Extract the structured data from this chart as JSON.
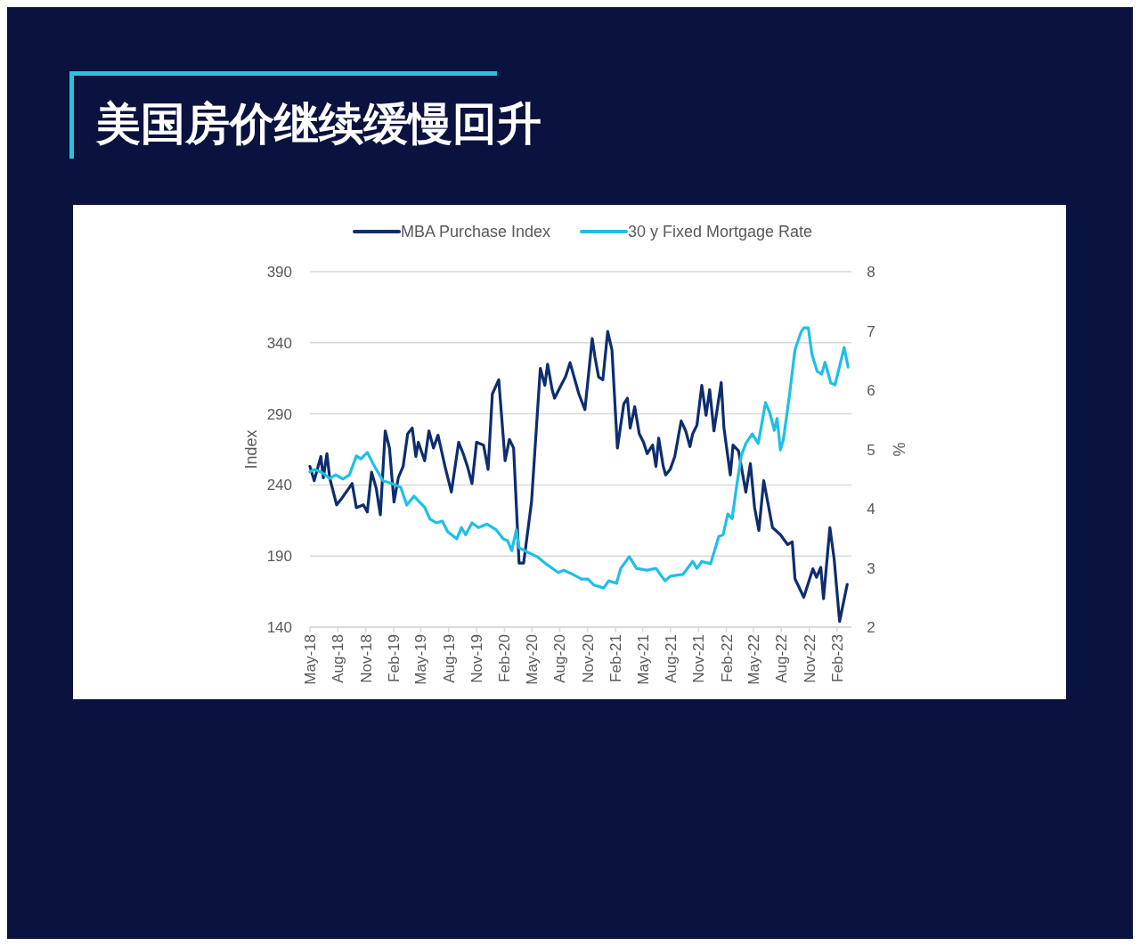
{
  "chart_data": {
    "type": "line",
    "title": "美国房价继续缓慢回升",
    "ylabel": "Index",
    "y2label": "%",
    "legend": "top",
    "grid": "y",
    "marker": "none",
    "line_style": "solid",
    "xlim": [
      "2018-05-01",
      "2023-03-20"
    ],
    "xticks": [
      {
        "value": "2018-05-01",
        "label": "May-18"
      },
      {
        "value": "2018-08-01",
        "label": "Aug-18"
      },
      {
        "value": "2018-11-01",
        "label": "Nov-18"
      },
      {
        "value": "2019-02-01",
        "label": "Feb-19"
      },
      {
        "value": "2019-05-01",
        "label": "May-19"
      },
      {
        "value": "2019-08-01",
        "label": "Aug-19"
      },
      {
        "value": "2019-11-01",
        "label": "Nov-19"
      },
      {
        "value": "2020-02-01",
        "label": "Feb-20"
      },
      {
        "value": "2020-05-01",
        "label": "May-20"
      },
      {
        "value": "2020-08-01",
        "label": "Aug-20"
      },
      {
        "value": "2020-11-01",
        "label": "Nov-20"
      },
      {
        "value": "2021-02-01",
        "label": "Feb-21"
      },
      {
        "value": "2021-05-01",
        "label": "May-21"
      },
      {
        "value": "2021-08-01",
        "label": "Aug-21"
      },
      {
        "value": "2021-11-01",
        "label": "Nov-21"
      },
      {
        "value": "2022-02-01",
        "label": "Feb-22"
      },
      {
        "value": "2022-05-01",
        "label": "May-22"
      },
      {
        "value": "2022-08-01",
        "label": "Aug-22"
      },
      {
        "value": "2022-11-01",
        "label": "Nov-22"
      },
      {
        "value": "2023-02-01",
        "label": "Feb-23"
      }
    ],
    "ylim": [
      140,
      390
    ],
    "yticks": [
      140,
      190,
      240,
      290,
      340,
      390
    ],
    "y2lim": [
      2,
      8
    ],
    "y2ticks": [
      2,
      3,
      4,
      5,
      6,
      7,
      8
    ],
    "series": [
      {
        "name": "MBA Purchase Index",
        "color": "#0d2d6e",
        "x": [
          "2018-05-01",
          "2018-05-15",
          "2018-06-06",
          "2018-06-14",
          "2018-06-26",
          "2018-07-05",
          "2018-07-28",
          "2018-08-12",
          "2018-09-17",
          "2018-10-01",
          "2018-10-24",
          "2018-11-06",
          "2018-11-20",
          "2018-12-05",
          "2018-12-19",
          "2019-01-04",
          "2019-01-18",
          "2019-02-02",
          "2019-02-16",
          "2019-03-04",
          "2019-03-19",
          "2019-04-03",
          "2019-04-15",
          "2019-04-23",
          "2019-05-14",
          "2019-05-28",
          "2019-06-12",
          "2019-06-27",
          "2019-07-20",
          "2019-08-10",
          "2019-09-03",
          "2019-09-18",
          "2019-10-02",
          "2019-10-17",
          "2019-11-01",
          "2019-11-24",
          "2019-12-09",
          "2019-12-23",
          "2020-01-13",
          "2020-02-03",
          "2020-02-17",
          "2020-03-02",
          "2020-03-20",
          "2020-04-04",
          "2020-04-30",
          "2020-05-29",
          "2020-06-13",
          "2020-06-22",
          "2020-07-07",
          "2020-07-15",
          "2020-08-05",
          "2020-08-20",
          "2020-09-04",
          "2020-10-03",
          "2020-10-23",
          "2020-11-16",
          "2020-11-25",
          "2020-12-07",
          "2020-12-21",
          "2021-01-06",
          "2021-01-20",
          "2021-02-07",
          "2021-02-28",
          "2021-03-12",
          "2021-03-21",
          "2021-04-05",
          "2021-04-20",
          "2021-05-04",
          "2021-05-16",
          "2021-06-03",
          "2021-06-14",
          "2021-06-23",
          "2021-07-08",
          "2021-07-16",
          "2021-07-31",
          "2021-08-15",
          "2021-09-05",
          "2021-09-20",
          "2021-10-04",
          "2021-10-13",
          "2021-10-27",
          "2021-11-12",
          "2021-11-26",
          "2021-12-08",
          "2021-12-22",
          "2022-01-15",
          "2022-01-24",
          "2022-02-14",
          "2022-02-23",
          "2022-03-13",
          "2022-04-06",
          "2022-04-21",
          "2022-05-05",
          "2022-05-19",
          "2022-06-04",
          "2022-07-03",
          "2022-07-29",
          "2022-08-22",
          "2022-09-06",
          "2022-09-15",
          "2022-10-14",
          "2022-11-13",
          "2022-11-25",
          "2022-12-09",
          "2022-12-18",
          "2023-01-08",
          "2023-01-22",
          "2023-02-09",
          "2023-03-06"
        ],
        "values": [
          253,
          243,
          260,
          245,
          262,
          245,
          226,
          230,
          241,
          224,
          226,
          221,
          249,
          238,
          219,
          278,
          266,
          228,
          245,
          253,
          276,
          280,
          260,
          270,
          257,
          278,
          266,
          275,
          253,
          235,
          270,
          262,
          253,
          241,
          270,
          268,
          251,
          304,
          314,
          257,
          272,
          266,
          185,
          185,
          228,
          322,
          310,
          325,
          307,
          301,
          310,
          316,
          326,
          304,
          293,
          343,
          330,
          316,
          314,
          348,
          335,
          266,
          297,
          301,
          280,
          295,
          276,
          270,
          262,
          268,
          253,
          273,
          253,
          247,
          251,
          260,
          285,
          278,
          267,
          276,
          282,
          310,
          289,
          307,
          278,
          312,
          280,
          247,
          268,
          264,
          235,
          255,
          224,
          208,
          243,
          210,
          205,
          198,
          200,
          174,
          161,
          181,
          175,
          182,
          160,
          210,
          188,
          144,
          170
        ]
      },
      {
        "name": "30 y Fixed Mortgage Rate",
        "color": "#1ebfe8",
        "axis": "y2",
        "x": [
          "2018-05-01",
          "2018-05-15",
          "2018-06-06",
          "2018-07-05",
          "2018-07-25",
          "2018-08-18",
          "2018-09-08",
          "2018-10-01",
          "2018-10-16",
          "2018-11-06",
          "2018-11-29",
          "2018-12-28",
          "2019-01-27",
          "2019-02-24",
          "2019-03-16",
          "2019-04-09",
          "2019-05-14",
          "2019-06-01",
          "2019-06-21",
          "2019-07-11",
          "2019-07-29",
          "2019-08-28",
          "2019-09-12",
          "2019-09-26",
          "2019-10-17",
          "2019-11-07",
          "2019-12-06",
          "2020-01-05",
          "2020-01-28",
          "2020-02-11",
          "2020-02-25",
          "2020-03-11",
          "2020-03-20",
          "2020-04-19",
          "2020-05-18",
          "2020-06-16",
          "2020-07-27",
          "2020-08-14",
          "2020-09-13",
          "2020-10-12",
          "2020-11-02",
          "2020-11-22",
          "2020-12-24",
          "2021-01-09",
          "2021-02-04",
          "2021-02-18",
          "2021-03-18",
          "2021-04-11",
          "2021-05-16",
          "2021-06-14",
          "2021-07-14",
          "2021-07-31",
          "2021-09-11",
          "2021-10-13",
          "2021-10-27",
          "2021-11-12",
          "2021-12-11",
          "2022-01-07",
          "2022-01-21",
          "2022-02-06",
          "2022-02-20",
          "2022-03-05",
          "2022-03-22",
          "2022-04-06",
          "2022-04-27",
          "2022-05-17",
          "2022-06-10",
          "2022-06-24",
          "2022-07-09",
          "2022-07-18",
          "2022-07-29",
          "2022-08-08",
          "2022-08-28",
          "2022-09-15",
          "2022-10-05",
          "2022-10-14",
          "2022-10-29",
          "2022-11-10",
          "2022-11-27",
          "2022-12-12",
          "2022-12-23",
          "2023-01-11",
          "2023-01-25",
          "2023-02-24",
          "2023-03-09"
        ],
        "values": [
          4.62,
          4.66,
          4.62,
          4.51,
          4.57,
          4.5,
          4.57,
          4.89,
          4.84,
          4.95,
          4.72,
          4.47,
          4.42,
          4.36,
          4.06,
          4.21,
          4.02,
          3.82,
          3.76,
          3.79,
          3.61,
          3.49,
          3.68,
          3.56,
          3.76,
          3.68,
          3.74,
          3.64,
          3.49,
          3.46,
          3.29,
          3.64,
          3.34,
          3.26,
          3.19,
          3.07,
          2.92,
          2.96,
          2.89,
          2.81,
          2.81,
          2.71,
          2.66,
          2.78,
          2.74,
          2.99,
          3.19,
          2.99,
          2.96,
          2.99,
          2.78,
          2.86,
          2.89,
          3.11,
          2.99,
          3.11,
          3.07,
          3.53,
          3.56,
          3.91,
          3.83,
          4.32,
          4.89,
          5.1,
          5.26,
          5.1,
          5.79,
          5.62,
          5.32,
          5.52,
          4.99,
          5.17,
          5.92,
          6.68,
          6.98,
          7.05,
          7.05,
          6.6,
          6.32,
          6.27,
          6.47,
          6.12,
          6.09,
          6.72,
          6.39
        ]
      }
    ]
  }
}
